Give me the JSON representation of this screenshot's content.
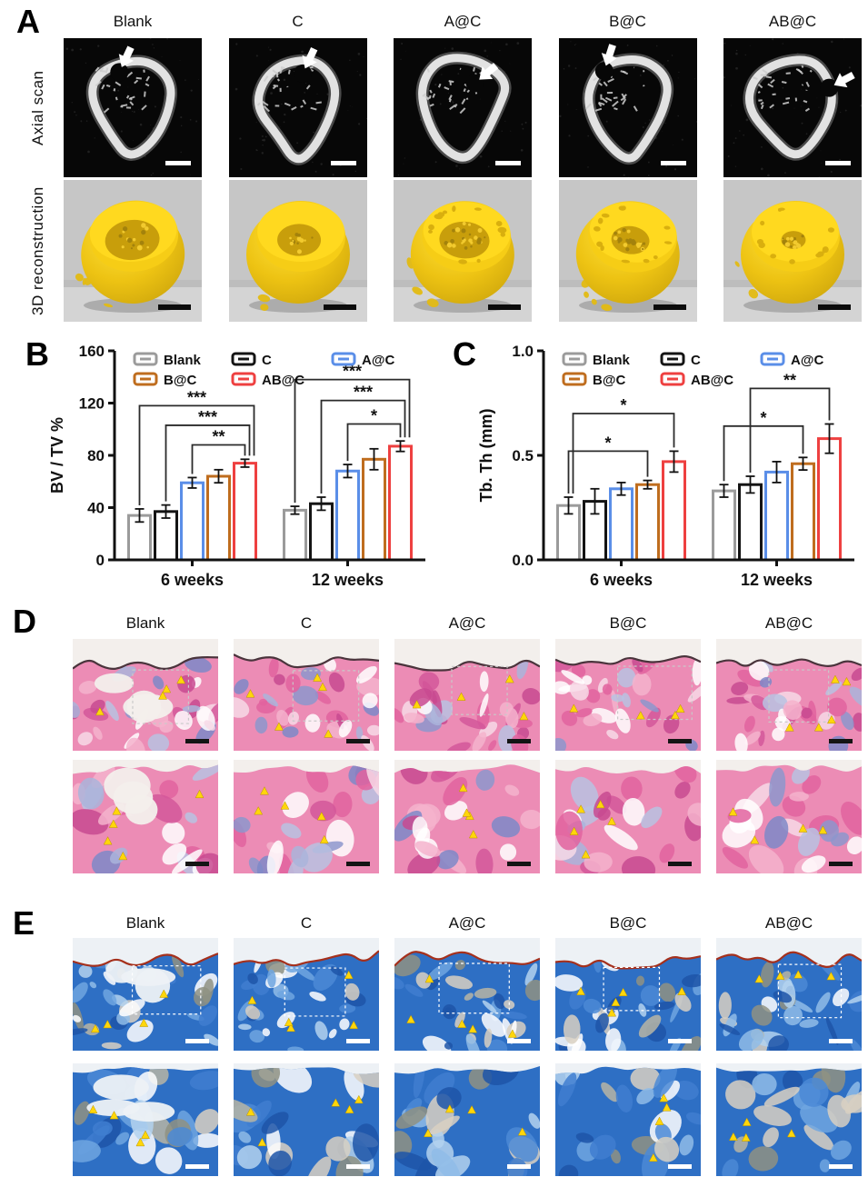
{
  "groups": [
    "Blank",
    "C",
    "A@C",
    "B@C",
    "AB@C"
  ],
  "panel_a": {
    "label": "A",
    "row1_label": "Axial scan",
    "row2_label": "3D reconstruction"
  },
  "panel_b": {
    "label": "B"
  },
  "panel_c": {
    "label": "C"
  },
  "panel_d": {
    "label": "D"
  },
  "panel_e": {
    "label": "E"
  },
  "colors": {
    "blank": "#9b9b9b",
    "c": "#141414",
    "ac": "#5a8ee8",
    "bc": "#bf6d1e",
    "abc": "#ee4040",
    "triangle_marker": "#ffd60a",
    "reconstruction_bone": "#f2c713"
  },
  "chart_data": [
    {
      "type": "bar",
      "panel": "B",
      "ylabel": "BV / TV %",
      "xlabel": "",
      "categories": [
        "6 weeks",
        "12 weeks"
      ],
      "ylim": [
        0,
        160
      ],
      "yticks": [
        0,
        40,
        80,
        120,
        160
      ],
      "ytick_labels": [
        "0",
        "40",
        "80",
        "120",
        "160"
      ],
      "grid": false,
      "legend_position": "top-inside",
      "series": [
        {
          "name": "Blank",
          "color": "#9b9b9b",
          "values": [
            34,
            38
          ],
          "errors": [
            5,
            3
          ]
        },
        {
          "name": "C",
          "color": "#141414",
          "values": [
            37,
            43
          ],
          "errors": [
            5,
            5
          ]
        },
        {
          "name": "A@C",
          "color": "#5a8ee8",
          "values": [
            59,
            68
          ],
          "errors": [
            4,
            5
          ]
        },
        {
          "name": "B@C",
          "color": "#bf6d1e",
          "values": [
            64,
            77
          ],
          "errors": [
            5,
            8
          ]
        },
        {
          "name": "AB@C",
          "color": "#ee4040",
          "values": [
            74,
            87
          ],
          "errors": [
            3,
            4
          ]
        }
      ],
      "significance": [
        {
          "cat": 0,
          "i1": 2,
          "i2": 4,
          "h": 88,
          "stars": "**"
        },
        {
          "cat": 0,
          "i1": 1,
          "i2": 4,
          "h": 103,
          "stars": "***"
        },
        {
          "cat": 0,
          "i1": 0,
          "i2": 4,
          "h": 118,
          "stars": "***"
        },
        {
          "cat": 1,
          "i1": 2,
          "i2": 4,
          "h": 104,
          "stars": "*"
        },
        {
          "cat": 1,
          "i1": 1,
          "i2": 4,
          "h": 122,
          "stars": "***"
        },
        {
          "cat": 1,
          "i1": 0,
          "i2": 4,
          "h": 138,
          "stars": "***"
        }
      ]
    },
    {
      "type": "bar",
      "panel": "C",
      "ylabel": "Tb. Th (mm)",
      "xlabel": "",
      "categories": [
        "6 weeks",
        "12 weeks"
      ],
      "ylim": [
        0,
        1.0
      ],
      "yticks": [
        0,
        0.5,
        1.0
      ],
      "ytick_labels": [
        "0.0",
        "0.5",
        "1.0"
      ],
      "grid": false,
      "legend_position": "top-inside",
      "series": [
        {
          "name": "Blank",
          "color": "#9b9b9b",
          "values": [
            0.26,
            0.33
          ],
          "errors": [
            0.04,
            0.03
          ]
        },
        {
          "name": "C",
          "color": "#141414",
          "values": [
            0.28,
            0.36
          ],
          "errors": [
            0.06,
            0.04
          ]
        },
        {
          "name": "A@C",
          "color": "#5a8ee8",
          "values": [
            0.34,
            0.42
          ],
          "errors": [
            0.03,
            0.05
          ]
        },
        {
          "name": "B@C",
          "color": "#bf6d1e",
          "values": [
            0.36,
            0.46
          ],
          "errors": [
            0.02,
            0.03
          ]
        },
        {
          "name": "AB@C",
          "color": "#ee4040",
          "values": [
            0.47,
            0.58
          ],
          "errors": [
            0.05,
            0.07
          ]
        }
      ],
      "significance": [
        {
          "cat": 0,
          "i1": 0,
          "i2": 3,
          "h": 0.52,
          "stars": "*"
        },
        {
          "cat": 0,
          "i1": 0,
          "i2": 4,
          "h": 0.7,
          "stars": "*"
        },
        {
          "cat": 1,
          "i1": 0,
          "i2": 3,
          "h": 0.64,
          "stars": "*"
        },
        {
          "cat": 1,
          "i1": 1,
          "i2": 4,
          "h": 0.82,
          "stars": "**"
        }
      ]
    }
  ]
}
